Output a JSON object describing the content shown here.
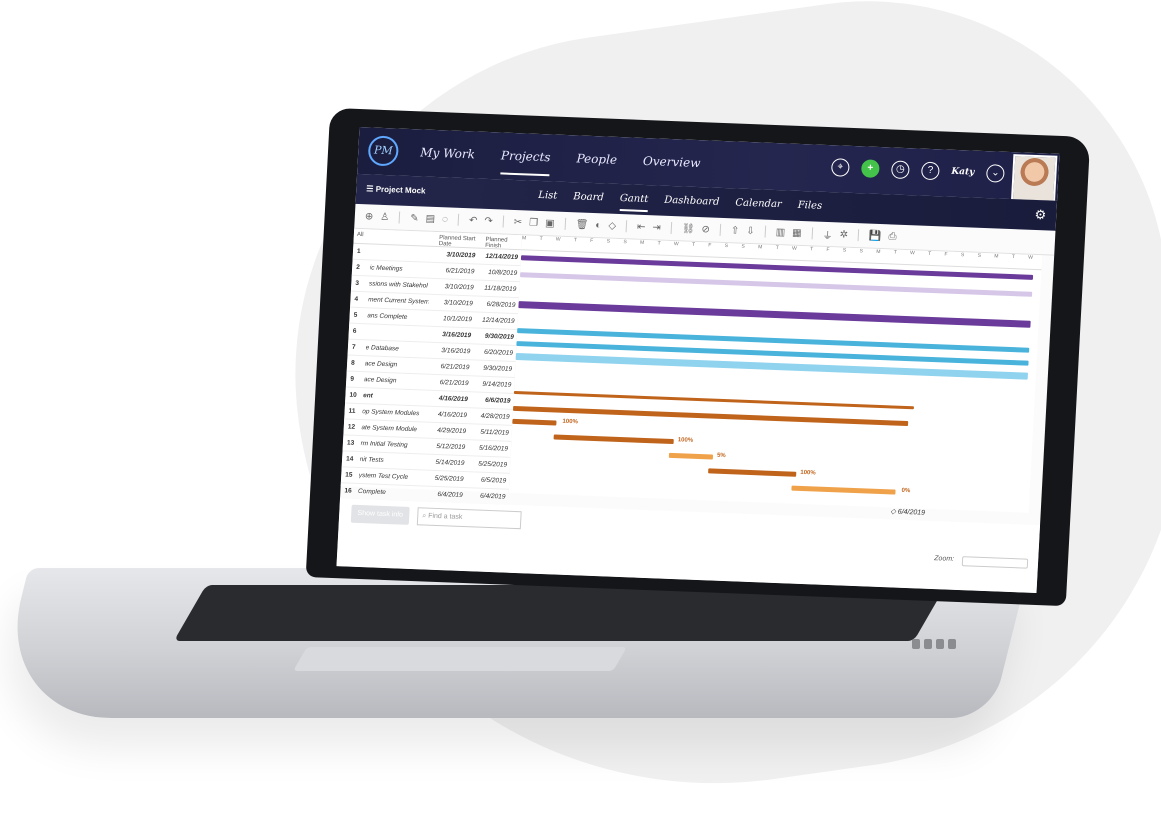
{
  "nav": {
    "logo": "PM",
    "links": [
      "My Work",
      "Projects",
      "People",
      "Overview"
    ],
    "active_link": "Projects",
    "user": "Katy"
  },
  "subnav": {
    "project": "Project Mock",
    "tabs": [
      "List",
      "Board",
      "Gantt",
      "Dashboard",
      "Calendar",
      "Files"
    ],
    "active_tab": "Gantt"
  },
  "grid": {
    "header": [
      "All",
      "",
      "Planned Start Date",
      "Planned Finish"
    ],
    "rows": [
      {
        "n": "1",
        "name": "",
        "start": "3/10/2019",
        "end": "12/14/2019",
        "bold": true
      },
      {
        "n": "2",
        "name": "ic Meetings",
        "start": "6/21/2019",
        "end": "10/8/2019"
      },
      {
        "n": "3",
        "name": "ssions with Stakehol",
        "start": "3/10/2019",
        "end": "11/18/2019"
      },
      {
        "n": "4",
        "name": "ment Current System",
        "start": "3/10/2019",
        "end": "6/28/2019"
      },
      {
        "n": "5",
        "name": "ans Complete",
        "start": "10/1/2019",
        "end": "12/14/2019"
      },
      {
        "n": "6",
        "name": "",
        "start": "3/16/2019",
        "end": "9/30/2019",
        "bold": true
      },
      {
        "n": "7",
        "name": "e Database",
        "start": "3/16/2019",
        "end": "6/20/2019"
      },
      {
        "n": "8",
        "name": "ace Design",
        "start": "6/21/2019",
        "end": "9/30/2019"
      },
      {
        "n": "9",
        "name": "ace Design",
        "start": "6/21/2019",
        "end": "9/14/2019"
      },
      {
        "n": "10",
        "name": "ent",
        "start": "4/16/2019",
        "end": "6/6/2019",
        "bold": true
      },
      {
        "n": "11",
        "name": "op System Modules",
        "start": "4/16/2019",
        "end": "4/28/2019"
      },
      {
        "n": "12",
        "name": "ate System Module",
        "start": "4/29/2019",
        "end": "5/11/2019"
      },
      {
        "n": "13",
        "name": "rm Initial Testing",
        "start": "5/12/2019",
        "end": "5/16/2019"
      },
      {
        "n": "14",
        "name": "nit Tests",
        "start": "5/14/2019",
        "end": "5/25/2019"
      },
      {
        "n": "15",
        "name": "ystem Test Cycle",
        "start": "5/25/2019",
        "end": "6/5/2019"
      },
      {
        "n": "16",
        "name": "Complete",
        "start": "6/4/2019",
        "end": "6/4/2019"
      }
    ]
  },
  "chart_labels": {
    "days": "M T W T F S S M T W T F S S M T W T F S S M T W T F S S M T W T F S S M T W T F S S",
    "pct_100a": "100%",
    "pct_100b": "100%",
    "pct_5": "5%",
    "pct_100c": "100%",
    "pct_0": "0%",
    "milestone": "6/4/2019"
  },
  "bottom": {
    "show_task_info": "Show task info",
    "search_placeholder": "Find a task",
    "zoom": "Zoom:"
  },
  "colors": {
    "purple": "#6a3b9a",
    "blue": "#49b3dc",
    "orange": "#c0641c",
    "light_orange": "#f0a24a"
  }
}
